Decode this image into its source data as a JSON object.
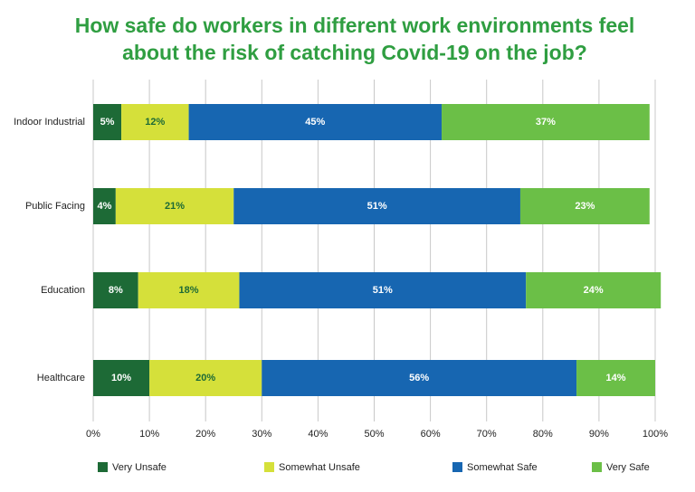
{
  "chart_data": {
    "type": "stacked-bar-horizontal",
    "title": [
      "How safe do workers in different work environments feel",
      "about the risk of catching Covid-19 on the job?"
    ],
    "categories": [
      "Indoor Industrial",
      "Public Facing",
      "Education",
      "Healthcare"
    ],
    "series": [
      {
        "name": "Very Unsafe",
        "color": "#1d6a36",
        "values": [
          5,
          4,
          8,
          10
        ],
        "value_labels": [
          "5%",
          "4%",
          "8%",
          "10%"
        ]
      },
      {
        "name": "Somewhat Unsafe",
        "color": "#d5e03a",
        "values": [
          12,
          21,
          18,
          20
        ],
        "value_labels": [
          "12%",
          "21%",
          "18%",
          "20%"
        ]
      },
      {
        "name": "Somewhat Safe",
        "color": "#1766b1",
        "values": [
          45,
          51,
          51,
          56
        ],
        "value_labels": [
          "45%",
          "51%",
          "51%",
          "56%"
        ]
      },
      {
        "name": "Very Safe",
        "color": "#6bbf47",
        "values": [
          37,
          23,
          24,
          14
        ],
        "value_labels": [
          "37%",
          "23%",
          "24%",
          "14%"
        ]
      }
    ],
    "xlim": [
      0,
      100
    ],
    "xticks": [
      {
        "value": 0,
        "label": "0%"
      },
      {
        "value": 10,
        "label": "10%"
      },
      {
        "value": 20,
        "label": "20%"
      },
      {
        "value": 30,
        "label": "30%"
      },
      {
        "value": 40,
        "label": "40%"
      },
      {
        "value": 50,
        "label": "50%"
      },
      {
        "value": 60,
        "label": "60%"
      },
      {
        "value": 70,
        "label": "70%"
      },
      {
        "value": 80,
        "label": "80%"
      },
      {
        "value": 90,
        "label": "90%"
      },
      {
        "value": 100,
        "label": "100%"
      }
    ],
    "grid": true
  }
}
